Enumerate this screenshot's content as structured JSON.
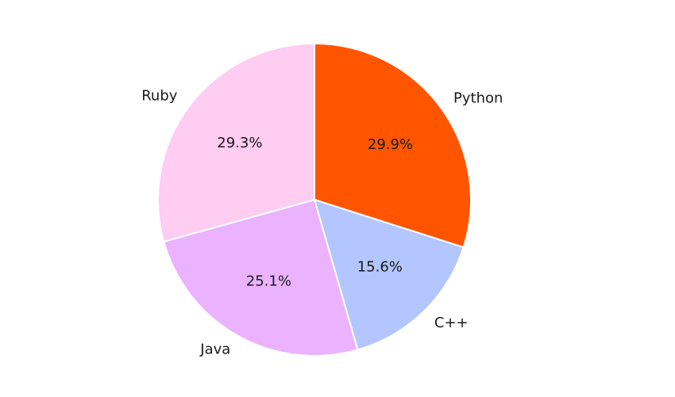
{
  "chart_data": {
    "type": "pie",
    "slices": [
      {
        "label": "Python",
        "value": 29.9,
        "pct_label": "29.9%",
        "color": "#ff5500"
      },
      {
        "label": "C++",
        "value": 15.6,
        "pct_label": "15.6%",
        "color": "#b3c6ff"
      },
      {
        "label": "Java",
        "value": 25.1,
        "pct_label": "25.1%",
        "color": "#ebb3ff"
      },
      {
        "label": "Ruby",
        "value": 29.3,
        "pct_label": "29.3%",
        "color": "#ffccf2"
      }
    ],
    "start_angle_deg": 90,
    "direction": "clockwise",
    "legend": "none"
  }
}
